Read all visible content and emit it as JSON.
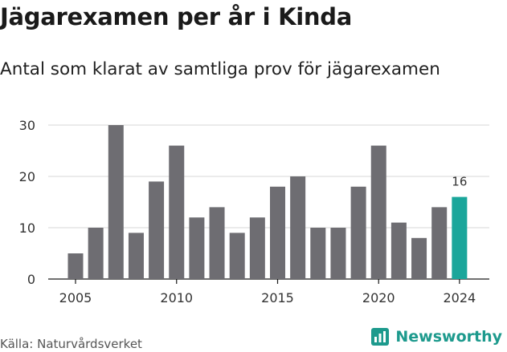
{
  "title": "Jägarexamen per år i Kinda",
  "subtitle": "Antal som klarat av samtliga prov för jägarexamen",
  "source": "Källa: Naturvårdsverket",
  "brand": "Newsworthy",
  "colors": {
    "bar": "#6e6d72",
    "highlight": "#1aa69b",
    "grid": "#d7d7d7",
    "axis": "#1a1a1a",
    "brand": "#1d9a8d"
  },
  "chart_data": {
    "type": "bar",
    "x": [
      2005,
      2006,
      2007,
      2008,
      2009,
      2010,
      2011,
      2012,
      2013,
      2014,
      2015,
      2016,
      2017,
      2018,
      2019,
      2020,
      2021,
      2022,
      2023,
      2024
    ],
    "values": [
      5,
      10,
      30,
      9,
      19,
      26,
      12,
      14,
      9,
      12,
      18,
      20,
      10,
      10,
      18,
      26,
      11,
      8,
      14,
      16
    ],
    "x_ticks": [
      "2005",
      "2010",
      "2015",
      "2020",
      "2024"
    ],
    "y_ticks": [
      "0",
      "10",
      "20",
      "30"
    ],
    "ylim": [
      0,
      30
    ],
    "highlight_index": 19,
    "data_labels": [
      {
        "index": 19,
        "text": "16"
      }
    ],
    "grid": true
  }
}
